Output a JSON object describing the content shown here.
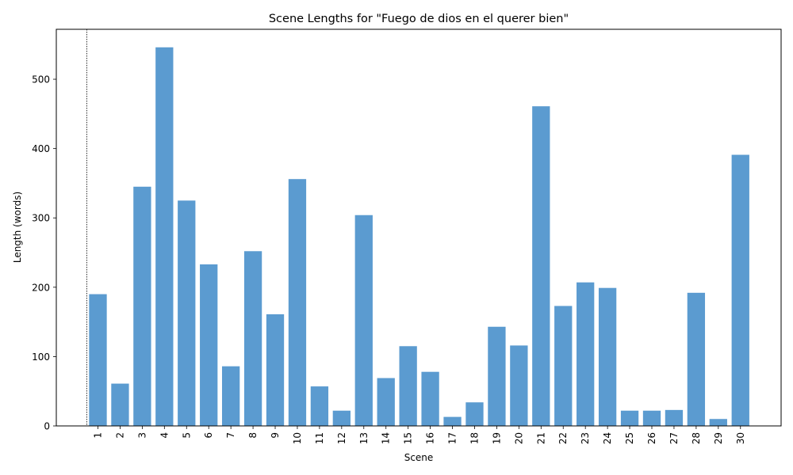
{
  "chart_data": {
    "type": "bar",
    "title": "Scene Lengths for \"Fuego de dios en el querer bien\"",
    "xlabel": "Scene",
    "ylabel": "Length (words)",
    "ylim": [
      0,
      572
    ],
    "yticks": [
      0,
      100,
      200,
      300,
      400,
      500
    ],
    "categories": [
      "1",
      "2",
      "3",
      "4",
      "5",
      "6",
      "7",
      "8",
      "9",
      "10",
      "11",
      "12",
      "13",
      "14",
      "15",
      "16",
      "17",
      "18",
      "19",
      "20",
      "21",
      "22",
      "23",
      "24",
      "25",
      "26",
      "27",
      "28",
      "29",
      "30"
    ],
    "values": [
      190,
      61,
      345,
      546,
      325,
      233,
      86,
      252,
      161,
      356,
      57,
      22,
      304,
      69,
      115,
      78,
      13,
      34,
      143,
      116,
      461,
      173,
      207,
      199,
      22,
      22,
      23,
      192,
      10,
      391
    ],
    "bar_color": "#5b9bd0",
    "grid": false,
    "marker_line": {
      "at_x": 0,
      "style": "dotted"
    }
  }
}
